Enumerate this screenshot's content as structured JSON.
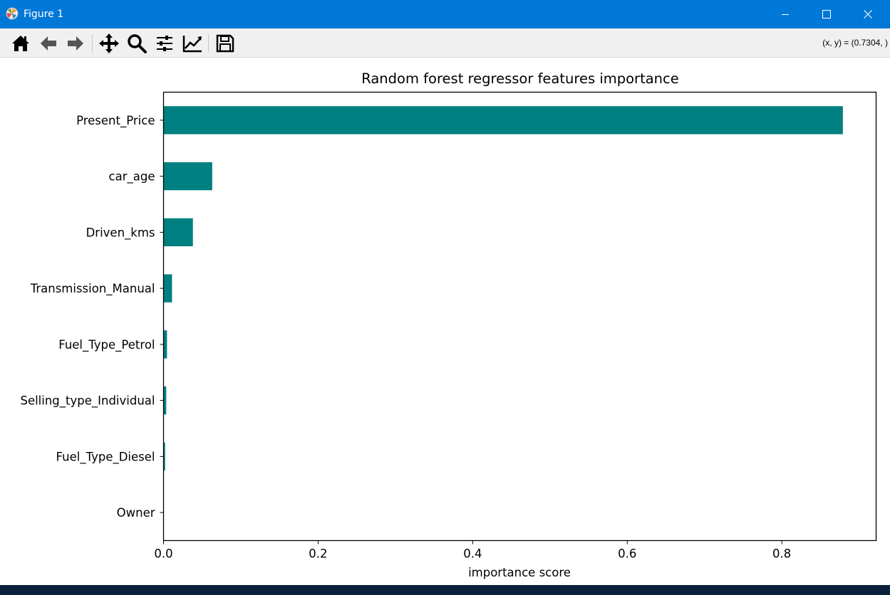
{
  "window": {
    "title": "Figure 1",
    "accent_color": "#0078d7",
    "controls": [
      "minimize-icon",
      "maximize-icon",
      "close-icon"
    ]
  },
  "toolbar": {
    "tools": [
      "home-icon",
      "back-icon",
      "forward-icon",
      "pan-icon",
      "zoom-icon",
      "configure-subplots-icon",
      "edit-axis-icon",
      "save-icon"
    ],
    "coords": "(x, y) = (0.7304, )"
  },
  "chart_data": {
    "type": "bar",
    "orientation": "horizontal",
    "title": "Random forest regressor features importance",
    "xlabel": "importance score",
    "ylabel": "",
    "categories": [
      "Present_Price",
      "car_age",
      "Driven_kms",
      "Transmission_Manual",
      "Fuel_Type_Petrol",
      "Selling_type_Individual",
      "Fuel_Type_Diesel",
      "Owner"
    ],
    "values": [
      0.879,
      0.063,
      0.038,
      0.011,
      0.0045,
      0.0035,
      0.002,
      0.0002
    ],
    "xlim": [
      0,
      0.922
    ],
    "xticks": [
      0.0,
      0.2,
      0.4,
      0.6,
      0.8
    ],
    "xtick_labels": [
      "0.0",
      "0.2",
      "0.4",
      "0.6",
      "0.8"
    ],
    "bar_color": "#008080",
    "grid": false,
    "legend": "none"
  }
}
